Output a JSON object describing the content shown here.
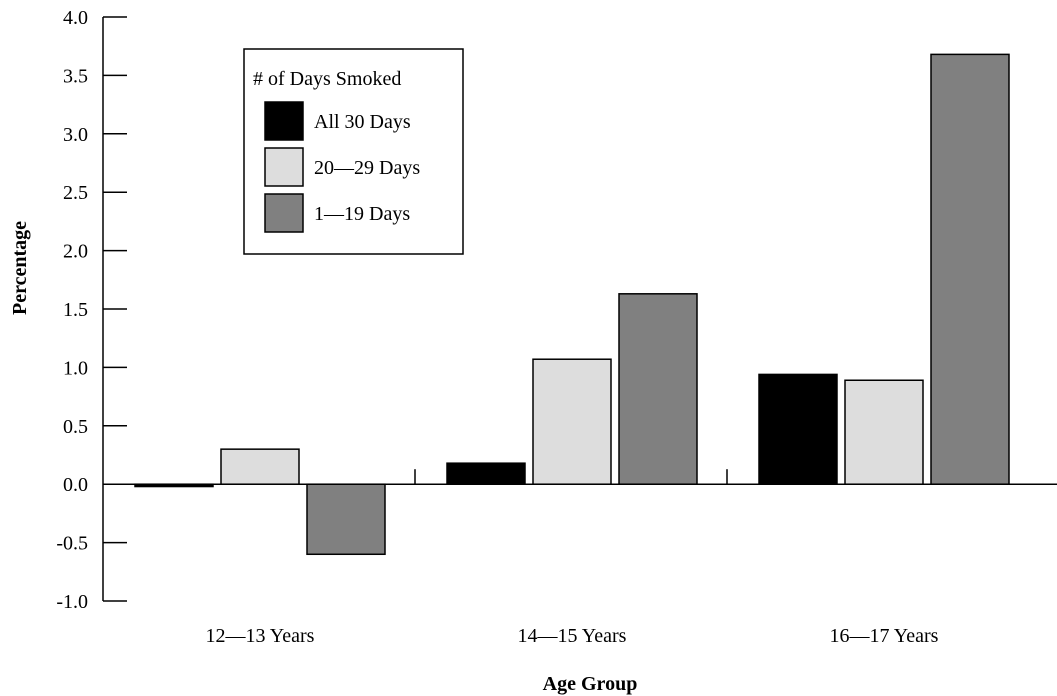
{
  "chart_data": {
    "type": "bar",
    "title": "",
    "xlabel": "Age Group",
    "ylabel": "Percentage",
    "categories": [
      "12—13 Years",
      "14—15 Years",
      "16—17 Years"
    ],
    "ylim": [
      -1.0,
      4.0
    ],
    "yticks": [
      "4.0",
      "3.5",
      "3.0",
      "2.5",
      "2.0",
      "1.5",
      "1.0",
      "0.5",
      "0.0",
      "-0.5",
      "-1.0"
    ],
    "grid": false,
    "legend": {
      "title": "# of Days Smoked",
      "placement": "top-left"
    },
    "series": [
      {
        "name": "All 30 Days",
        "color": "#000000",
        "values": [
          -0.02,
          0.18,
          0.94
        ]
      },
      {
        "name": "20—29 Days",
        "color": "#dddddd",
        "values": [
          0.3,
          1.07,
          0.89
        ]
      },
      {
        "name": "1—19 Days",
        "color": "#808080",
        "values": [
          -0.6,
          1.63,
          3.68
        ]
      }
    ]
  }
}
